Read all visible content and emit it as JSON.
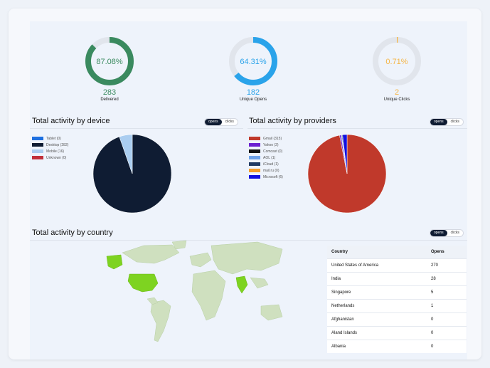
{
  "donuts": [
    {
      "pct_label": "87.08%",
      "pct": 0.8708,
      "count": "283",
      "label": "Delivered",
      "color": "#3a8a5f"
    },
    {
      "pct_label": "64.31%",
      "pct": 0.6431,
      "count": "182",
      "label": "Unique Opens",
      "color": "#2aa3ea"
    },
    {
      "pct_label": "0.71%",
      "pct": 0.0071,
      "count": "2",
      "label": "Unique Clicks",
      "color": "#f5b546"
    }
  ],
  "device": {
    "title": "Total activity by device",
    "toggle": {
      "opens": "opens",
      "clicks": "clicks"
    },
    "legend": [
      {
        "label": "Tablet (0)",
        "color": "#1d6fe0",
        "value": 0
      },
      {
        "label": "Desktop (282)",
        "color": "#0f1c33",
        "value": 282
      },
      {
        "label": "Mobile (16)",
        "color": "#aacdf0",
        "value": 16
      },
      {
        "label": "Unknown (0)",
        "color": "#c0303a",
        "value": 0
      }
    ]
  },
  "providers": {
    "title": "Total activity by providers",
    "toggle": {
      "opens": "opens",
      "clicks": "clicks"
    },
    "legend": [
      {
        "label": "Gmail (315)",
        "color": "#c0392b",
        "value": 315
      },
      {
        "label": "Yahoo (2)",
        "color": "#6a1fd1",
        "value": 2
      },
      {
        "label": "Comcast (0)",
        "color": "#111111",
        "value": 0
      },
      {
        "label": "AOL (1)",
        "color": "#6fa3e8",
        "value": 1
      },
      {
        "label": "iCloud (1)",
        "color": "#1f3a63",
        "value": 1
      },
      {
        "label": "mail.ru (0)",
        "color": "#f39c2a",
        "value": 0
      },
      {
        "label": "Microsoft (6)",
        "color": "#1010e0",
        "value": 6
      }
    ]
  },
  "country": {
    "title": "Total activity by country",
    "toggle": {
      "opens": "opens",
      "clicks": "clicks"
    },
    "columns": [
      "Country",
      "Opens"
    ],
    "rows": [
      [
        "United States of America",
        "270"
      ],
      [
        "India",
        "28"
      ],
      [
        "Singapore",
        "5"
      ],
      [
        "Netherlands",
        "1"
      ],
      [
        "Afghanistan",
        "0"
      ],
      [
        "Aland Islands",
        "0"
      ],
      [
        "Albania",
        "0"
      ]
    ]
  }
}
